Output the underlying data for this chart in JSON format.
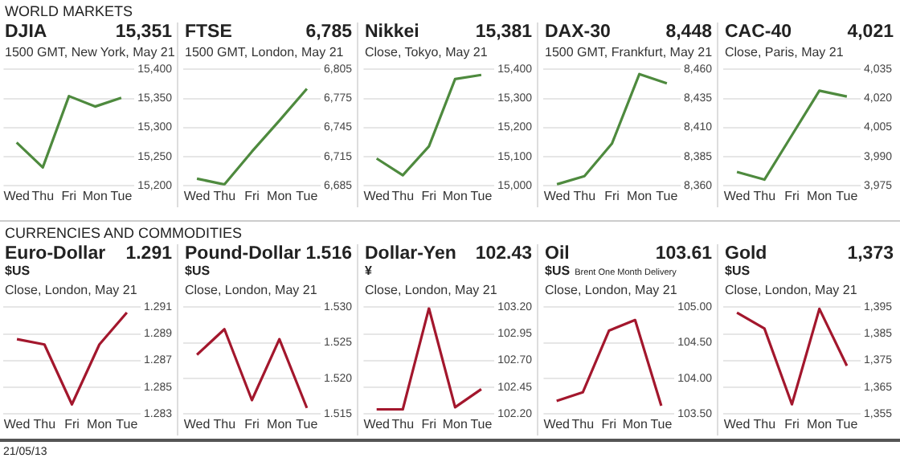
{
  "chart_data": [
    {
      "type": "line",
      "title": "DJIA",
      "subtitle": "1500 GMT, New York, May 21",
      "annotations": [
        "WORLD MARKETS",
        "15,351"
      ],
      "categories": [
        "Wed",
        "Thu",
        "Fri",
        "Mon",
        "Tue"
      ],
      "series": [
        {
          "color": "#4e8a3e",
          "values": [
            15274,
            15231,
            15354,
            15336,
            15351
          ]
        }
      ],
      "ylim": [
        15200,
        15400
      ],
      "yticks": [
        {
          "value": 15200,
          "label": "15,200"
        },
        {
          "value": 15250,
          "label": "15,250"
        },
        {
          "value": 15300,
          "label": "15,300"
        },
        {
          "value": 15350,
          "label": "15,350"
        },
        {
          "value": 15400,
          "label": "15,400"
        }
      ],
      "grid": "y",
      "legend": false
    },
    {
      "type": "line",
      "title": "FTSE",
      "subtitle": "1500 GMT, London, May 21",
      "annotations": [
        "6,785"
      ],
      "categories": [
        "Wed",
        "Thu",
        "Fri",
        "Mon",
        "Tue"
      ],
      "series": [
        {
          "color": "#4e8a3e",
          "values": [
            6692,
            6686,
            6720,
            6752,
            6785
          ]
        }
      ],
      "ylim": [
        6685,
        6805
      ],
      "yticks": [
        {
          "value": 6685,
          "label": "6,685"
        },
        {
          "value": 6715,
          "label": "6,715"
        },
        {
          "value": 6745,
          "label": "6,745"
        },
        {
          "value": 6775,
          "label": "6,775"
        },
        {
          "value": 6805,
          "label": "6,805"
        }
      ],
      "grid": "y",
      "legend": false
    },
    {
      "type": "line",
      "title": "Nikkei",
      "subtitle": "Close, Tokyo, May 21",
      "annotations": [
        "15,381"
      ],
      "categories": [
        "Wed",
        "Thu",
        "Fri",
        "Mon",
        "Tue"
      ],
      "series": [
        {
          "color": "#4e8a3e",
          "values": [
            15093,
            15035,
            15135,
            15367,
            15381
          ]
        }
      ],
      "ylim": [
        15000,
        15400
      ],
      "yticks": [
        {
          "value": 15000,
          "label": "15,000"
        },
        {
          "value": 15100,
          "label": "15,100"
        },
        {
          "value": 15200,
          "label": "15,200"
        },
        {
          "value": 15300,
          "label": "15,300"
        },
        {
          "value": 15400,
          "label": "15,400"
        }
      ],
      "grid": "y",
      "legend": false
    },
    {
      "type": "line",
      "title": "DAX-30",
      "subtitle": "1500 GMT, Frankfurt, May 21",
      "annotations": [
        "8,448"
      ],
      "categories": [
        "Wed",
        "Thu",
        "Fri",
        "Mon",
        "Tue"
      ],
      "series": [
        {
          "color": "#4e8a3e",
          "values": [
            8361,
            8368,
            8396,
            8456,
            8448
          ]
        }
      ],
      "ylim": [
        8360,
        8460
      ],
      "yticks": [
        {
          "value": 8360,
          "label": "8,360"
        },
        {
          "value": 8385,
          "label": "8,385"
        },
        {
          "value": 8410,
          "label": "8,410"
        },
        {
          "value": 8435,
          "label": "8,435"
        },
        {
          "value": 8460,
          "label": "8,460"
        }
      ],
      "grid": "y",
      "legend": false
    },
    {
      "type": "line",
      "title": "CAC-40",
      "subtitle": "Close, Paris, May 21",
      "annotations": [
        "4,021"
      ],
      "categories": [
        "Wed",
        "Thu",
        "Fri",
        "Mon",
        "Tue"
      ],
      "series": [
        {
          "color": "#4e8a3e",
          "values": [
            3982,
            3978,
            4001,
            4024,
            4021
          ]
        }
      ],
      "ylim": [
        3975,
        4035
      ],
      "yticks": [
        {
          "value": 3975,
          "label": "3,975"
        },
        {
          "value": 3990,
          "label": "3,990"
        },
        {
          "value": 4005,
          "label": "4,005"
        },
        {
          "value": 4020,
          "label": "4,020"
        },
        {
          "value": 4035,
          "label": "4,035"
        }
      ],
      "grid": "y",
      "legend": false
    },
    {
      "type": "line",
      "title": "Euro-Dollar",
      "subtitle": "Close, London, May 21",
      "annotations": [
        "CURRENCIES AND COMMODITIES",
        "1.291",
        "$US",
        "21/05/13"
      ],
      "categories": [
        "Wed",
        "Thu",
        "Fri",
        "Mon",
        "Tue"
      ],
      "series": [
        {
          "color": "#a3172d",
          "values": [
            1.2886,
            1.2882,
            1.2837,
            1.2882,
            1.2906
          ]
        }
      ],
      "ylim": [
        1.283,
        1.291
      ],
      "yticks": [
        1.283,
        1.285,
        1.287,
        1.289,
        1.291
      ],
      "grid": "y",
      "legend": false
    },
    {
      "type": "line",
      "title": "Pound-Dollar",
      "subtitle": "Close, London, May 21",
      "annotations": [
        "1.516",
        "$US"
      ],
      "categories": [
        "Wed",
        "Thu",
        "Fri",
        "Mon",
        "Tue"
      ],
      "series": [
        {
          "color": "#a3172d",
          "values": [
            1.5233,
            1.5269,
            1.5169,
            1.5255,
            1.5158
          ]
        }
      ],
      "ylim": [
        1.515,
        1.53
      ],
      "yticks": [
        1.515,
        {
          "value": 1.52,
          "label": "1.520"
        },
        1.525,
        {
          "value": 1.53,
          "label": "1.530"
        }
      ],
      "grid": "y",
      "legend": false
    },
    {
      "type": "line",
      "title": "Dollar-Yen",
      "subtitle": "Close, London, May 21",
      "annotations": [
        "102.43",
        "¥"
      ],
      "categories": [
        "Wed",
        "Thu",
        "Fri",
        "Mon",
        "Tue"
      ],
      "series": [
        {
          "color": "#a3172d",
          "values": [
            102.24,
            102.24,
            103.19,
            102.26,
            102.43
          ]
        }
      ],
      "ylim": [
        102.2,
        103.2
      ],
      "yticks": [
        {
          "value": 102.2,
          "label": "102.20"
        },
        {
          "value": 102.45,
          "label": "102.45"
        },
        {
          "value": 102.7,
          "label": "102.70"
        },
        {
          "value": 102.95,
          "label": "102.95"
        },
        {
          "value": 103.2,
          "label": "103.20"
        }
      ],
      "grid": "y",
      "legend": false
    },
    {
      "type": "line",
      "title": "Oil",
      "subtitle": "Close, London, May 21",
      "annotations": [
        "103.61",
        "$US",
        "Brent One Month Delivery"
      ],
      "categories": [
        "Wed",
        "Thu",
        "Fri",
        "Mon",
        "Tue"
      ],
      "series": [
        {
          "color": "#a3172d",
          "values": [
            103.68,
            103.8,
            104.67,
            104.82,
            103.61
          ]
        }
      ],
      "ylim": [
        103.5,
        105
      ],
      "yticks": [
        {
          "value": 103.5,
          "label": "103.50"
        },
        {
          "value": 104,
          "label": "104.00"
        },
        {
          "value": 104.5,
          "label": "104.50"
        },
        {
          "value": 105,
          "label": "105.00"
        }
      ],
      "grid": "y",
      "legend": false
    },
    {
      "type": "line",
      "title": "Gold",
      "subtitle": "Close, London, May 21",
      "annotations": [
        "1,373",
        "$US"
      ],
      "categories": [
        "Wed",
        "Thu",
        "Fri",
        "Mon",
        "Tue"
      ],
      "series": [
        {
          "color": "#a3172d",
          "values": [
            1393,
            1387,
            1358.5,
            1394.4,
            1373
          ]
        }
      ],
      "ylim": [
        1355,
        1395
      ],
      "yticks": [
        {
          "value": 1355,
          "label": "1,355"
        },
        {
          "value": 1365,
          "label": "1,365"
        },
        {
          "value": 1375,
          "label": "1,375"
        },
        {
          "value": 1385,
          "label": "1,385"
        },
        {
          "value": 1395,
          "label": "1,395"
        }
      ],
      "grid": "y",
      "legend": false
    }
  ]
}
